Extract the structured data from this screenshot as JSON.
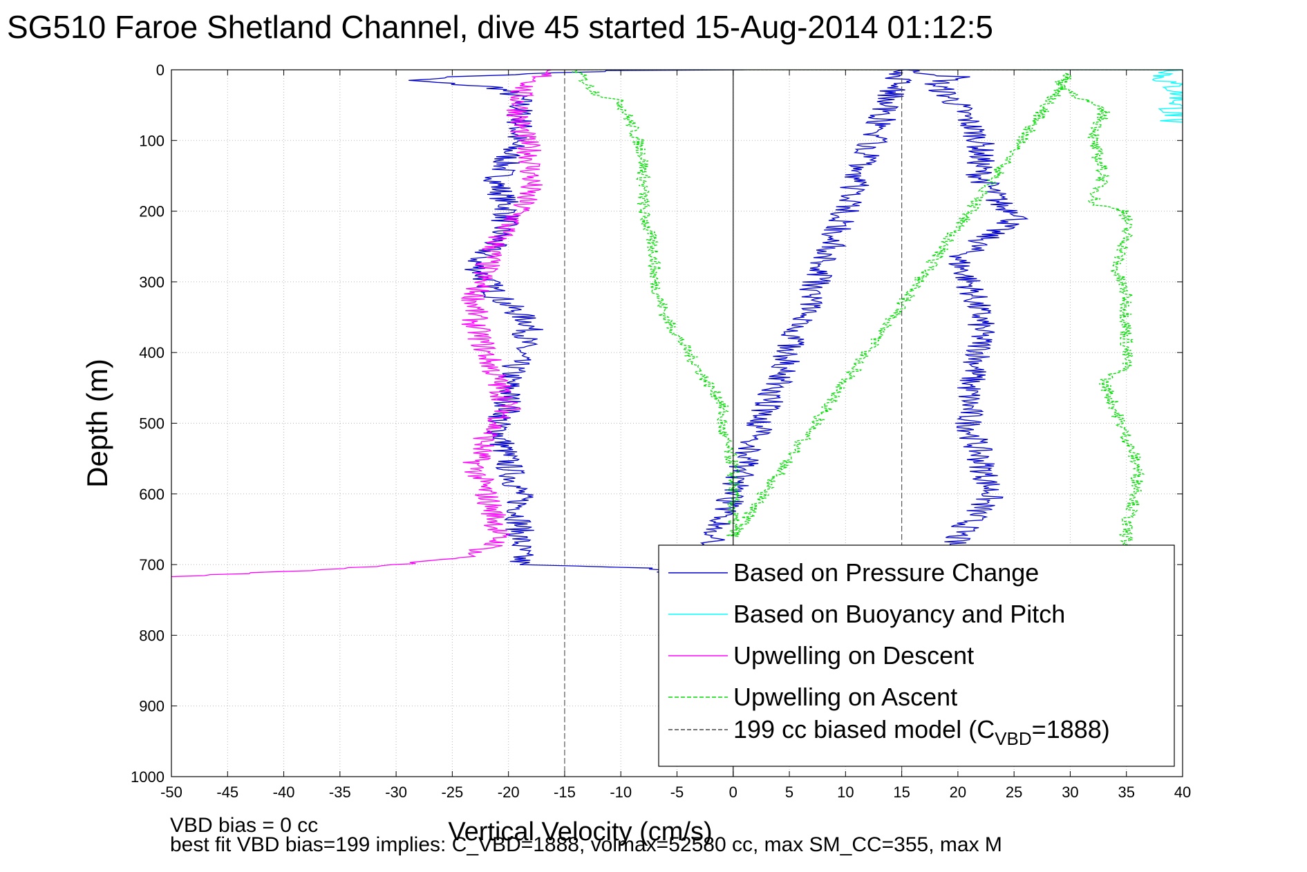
{
  "title": "SG510 Faroe Shetland Channel, dive 45 started 15-Aug-2014 01:12:5",
  "footnotes": {
    "vbd_bias": "VBD bias = 0 cc",
    "best_fit": "best fit VBD bias=199 implies: C_VBD=1888, volmax=52580 cc, max SM_CC=355, max M"
  },
  "chart_data": {
    "type": "line",
    "xlabel": "Vertical Velocity (cm/s)",
    "ylabel": "Depth (m)",
    "xlim": [
      -50,
      40
    ],
    "ylim": [
      0,
      1000
    ],
    "y_reversed": true,
    "grid": true,
    "xticks": [
      -50,
      -45,
      -40,
      -35,
      -30,
      -25,
      -20,
      -15,
      -10,
      -5,
      0,
      5,
      10,
      15,
      20,
      25,
      30,
      35,
      40
    ],
    "yticks": [
      0,
      100,
      200,
      300,
      400,
      500,
      600,
      700,
      800,
      900,
      1000
    ],
    "vlines": [
      {
        "x": 0,
        "style": "solid",
        "color": "#000000"
      },
      {
        "x": -15,
        "style": "dashed",
        "color": "#555555"
      },
      {
        "x": 15,
        "style": "dashed",
        "color": "#555555"
      }
    ],
    "legend_position": "lower-right",
    "legend": [
      {
        "label": "Based on Pressure Change",
        "color": "#0000cc",
        "dash": "solid"
      },
      {
        "label": "Based on Buoyancy and Pitch",
        "color": "#00ffff",
        "dash": "solid"
      },
      {
        "label": "Upwelling on Descent",
        "color": "#ff00ff",
        "dash": "solid"
      },
      {
        "label": "Upwelling on Ascent",
        "color": "#00dd00",
        "dash": "dashed"
      },
      {
        "label": "199 cc biased model (C",
        "sub": "VBD",
        "suffix": "=1888)",
        "color": "#444444",
        "dash": "dashed"
      }
    ],
    "series": [
      {
        "color": "#0000cc",
        "dash": "solid",
        "noise": 1.3,
        "points": [
          [
            1,
            0
          ],
          [
            -10,
            1
          ],
          [
            -25,
            10
          ],
          [
            -29,
            15
          ],
          [
            -21,
            25
          ],
          [
            -19,
            40
          ],
          [
            -19,
            80
          ],
          [
            -20,
            120
          ],
          [
            -21,
            160
          ],
          [
            -20,
            200
          ],
          [
            -21,
            240
          ],
          [
            -23,
            275
          ],
          [
            -21,
            320
          ],
          [
            -18,
            360
          ],
          [
            -19,
            400
          ],
          [
            -20,
            440
          ],
          [
            -20,
            480
          ],
          [
            -21,
            500
          ],
          [
            -20,
            560
          ],
          [
            -19,
            600
          ],
          [
            -19,
            650
          ],
          [
            -19,
            700
          ],
          [
            -14,
            702
          ],
          [
            -8,
            705
          ],
          [
            -5,
            712
          ],
          [
            -3,
            716
          ],
          [
            15,
            0
          ],
          [
            20,
            10
          ],
          [
            18,
            20
          ],
          [
            20,
            50
          ],
          [
            22,
            100
          ],
          [
            22,
            150
          ],
          [
            24,
            195
          ],
          [
            26,
            205
          ],
          [
            23,
            230
          ],
          [
            20,
            270
          ],
          [
            21,
            300
          ],
          [
            22,
            350
          ],
          [
            22,
            400
          ],
          [
            21,
            450
          ],
          [
            21,
            500
          ],
          [
            22,
            550
          ],
          [
            23,
            600
          ],
          [
            21,
            640
          ],
          [
            20,
            660
          ],
          [
            19,
            680
          ],
          [
            20,
            705
          ],
          [
            23,
            715
          ]
        ]
      },
      {
        "color": "#00ffff",
        "dash": "solid",
        "noise": 1.4,
        "points": [
          [
            26,
            0
          ],
          [
            40,
            0
          ],
          [
            38,
            10
          ],
          [
            39,
            20
          ],
          [
            40,
            40
          ],
          [
            39,
            60
          ],
          [
            40,
            70
          ],
          [
            38,
            72
          ],
          [
            40,
            74
          ]
        ]
      },
      {
        "color": "#ff00ff",
        "dash": "solid",
        "noise": 1.2,
        "points": [
          [
            -17,
            0
          ],
          [
            -17,
            10
          ],
          [
            -19,
            30
          ],
          [
            -19,
            80
          ],
          [
            -18,
            120
          ],
          [
            -18,
            160
          ],
          [
            -19,
            200
          ],
          [
            -21,
            240
          ],
          [
            -22,
            280
          ],
          [
            -23,
            320
          ],
          [
            -23,
            360
          ],
          [
            -22,
            400
          ],
          [
            -21,
            440
          ],
          [
            -20,
            480
          ],
          [
            -22,
            520
          ],
          [
            -23,
            560
          ],
          [
            -22,
            600
          ],
          [
            -21,
            640
          ],
          [
            -21,
            670
          ],
          [
            -24,
            690
          ],
          [
            -30,
            700
          ],
          [
            -40,
            710
          ],
          [
            -50,
            717
          ]
        ]
      },
      {
        "color": "#00dd00",
        "dash": "dashed",
        "noise": 0.6,
        "points": [
          [
            40,
            0
          ],
          [
            -14,
            0
          ],
          [
            -13,
            20
          ],
          [
            -12,
            35
          ],
          [
            -10,
            45
          ],
          [
            -9,
            80
          ],
          [
            -8,
            120
          ],
          [
            -8,
            200
          ],
          [
            -7,
            260
          ],
          [
            -7,
            300
          ],
          [
            -6,
            350
          ],
          [
            -4,
            400
          ],
          [
            -2,
            450
          ],
          [
            -1,
            470
          ],
          [
            -1,
            510
          ],
          [
            0,
            560
          ],
          [
            0,
            610
          ],
          [
            0,
            660
          ],
          [
            30,
            5
          ],
          [
            29,
            20
          ],
          [
            31,
            40
          ],
          [
            33,
            60
          ],
          [
            32,
            100
          ],
          [
            33,
            150
          ],
          [
            32,
            190
          ],
          [
            35,
            200
          ],
          [
            35,
            240
          ],
          [
            34,
            280
          ],
          [
            35,
            320
          ],
          [
            35,
            400
          ],
          [
            35,
            420
          ],
          [
            33,
            440
          ],
          [
            34,
            480
          ],
          [
            35,
            520
          ],
          [
            36,
            560
          ],
          [
            36,
            600
          ],
          [
            35,
            640
          ],
          [
            35,
            680
          ]
        ]
      }
    ]
  }
}
